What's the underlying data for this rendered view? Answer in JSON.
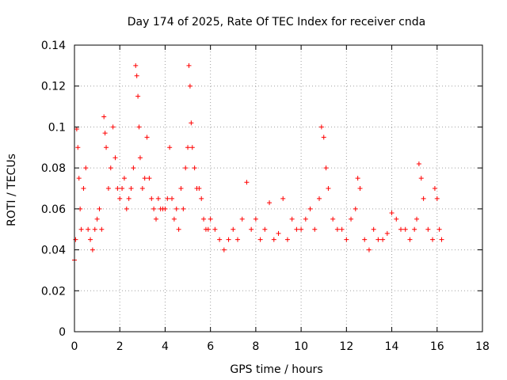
{
  "chart_data": {
    "type": "scatter",
    "title": "Day 174 of 2025, Rate Of TEC Index for receiver cnda",
    "xlabel": "GPS time / hours",
    "ylabel": "ROTI / TECUs",
    "xlim": [
      0,
      18
    ],
    "ylim": [
      0,
      0.14
    ],
    "xticks": [
      0,
      2,
      4,
      6,
      8,
      10,
      12,
      14,
      16,
      18
    ],
    "xtick_labels": [
      "0",
      "2",
      "4",
      "6",
      "8",
      "10",
      "12",
      "14",
      "16",
      "18"
    ],
    "yticks": [
      0,
      0.02,
      0.04,
      0.06,
      0.08,
      0.1,
      0.12,
      0.14
    ],
    "ytick_labels": [
      "0",
      "0.02",
      "0.04",
      "0.06",
      "0.08",
      "0.1",
      "0.12",
      "0.14"
    ],
    "grid": true,
    "marker": "+",
    "color": "#ff0000",
    "series": [
      {
        "name": "ROTI",
        "x": [
          0.0,
          0.05,
          0.1,
          0.15,
          0.2,
          0.25,
          0.3,
          0.4,
          0.5,
          0.6,
          0.7,
          0.8,
          0.9,
          1.0,
          1.1,
          1.2,
          1.3,
          1.35,
          1.4,
          1.5,
          1.6,
          1.7,
          1.8,
          1.9,
          2.0,
          2.1,
          2.2,
          2.3,
          2.4,
          2.5,
          2.6,
          2.7,
          2.75,
          2.8,
          2.85,
          2.9,
          3.0,
          3.1,
          3.2,
          3.3,
          3.4,
          3.5,
          3.6,
          3.7,
          3.8,
          3.9,
          4.0,
          4.1,
          4.2,
          4.3,
          4.4,
          4.5,
          4.6,
          4.7,
          4.8,
          4.9,
          5.0,
          5.05,
          5.1,
          5.15,
          5.2,
          5.3,
          5.4,
          5.5,
          5.6,
          5.7,
          5.8,
          5.9,
          6.0,
          6.2,
          6.4,
          6.6,
          6.8,
          7.0,
          7.2,
          7.4,
          7.6,
          7.8,
          8.0,
          8.2,
          8.4,
          8.6,
          8.8,
          9.0,
          9.2,
          9.4,
          9.6,
          9.8,
          10.0,
          10.2,
          10.4,
          10.6,
          10.8,
          10.9,
          11.0,
          11.1,
          11.2,
          11.4,
          11.6,
          11.8,
          12.0,
          12.2,
          12.4,
          12.5,
          12.6,
          12.8,
          13.0,
          13.2,
          13.4,
          13.6,
          13.8,
          14.0,
          14.2,
          14.4,
          14.6,
          14.8,
          15.0,
          15.1,
          15.2,
          15.3,
          15.4,
          15.6,
          15.8,
          15.9,
          16.0,
          16.1,
          16.2
        ],
        "y": [
          0.035,
          0.045,
          0.099,
          0.09,
          0.075,
          0.06,
          0.05,
          0.07,
          0.08,
          0.05,
          0.045,
          0.04,
          0.05,
          0.055,
          0.06,
          0.05,
          0.105,
          0.097,
          0.09,
          0.07,
          0.08,
          0.1,
          0.085,
          0.07,
          0.065,
          0.07,
          0.075,
          0.06,
          0.065,
          0.07,
          0.08,
          0.13,
          0.125,
          0.115,
          0.1,
          0.085,
          0.07,
          0.075,
          0.095,
          0.075,
          0.065,
          0.06,
          0.055,
          0.065,
          0.06,
          0.06,
          0.06,
          0.065,
          0.09,
          0.065,
          0.055,
          0.06,
          0.05,
          0.07,
          0.06,
          0.08,
          0.09,
          0.13,
          0.12,
          0.102,
          0.09,
          0.08,
          0.07,
          0.07,
          0.065,
          0.055,
          0.05,
          0.05,
          0.055,
          0.05,
          0.045,
          0.04,
          0.045,
          0.05,
          0.045,
          0.055,
          0.073,
          0.05,
          0.055,
          0.045,
          0.05,
          0.063,
          0.045,
          0.048,
          0.065,
          0.045,
          0.055,
          0.05,
          0.05,
          0.055,
          0.06,
          0.05,
          0.065,
          0.1,
          0.095,
          0.08,
          0.07,
          0.055,
          0.05,
          0.05,
          0.045,
          0.055,
          0.06,
          0.075,
          0.07,
          0.045,
          0.04,
          0.05,
          0.045,
          0.045,
          0.048,
          0.058,
          0.055,
          0.05,
          0.05,
          0.045,
          0.05,
          0.055,
          0.082,
          0.075,
          0.065,
          0.05,
          0.045,
          0.07,
          0.065,
          0.05,
          0.045
        ]
      }
    ]
  }
}
